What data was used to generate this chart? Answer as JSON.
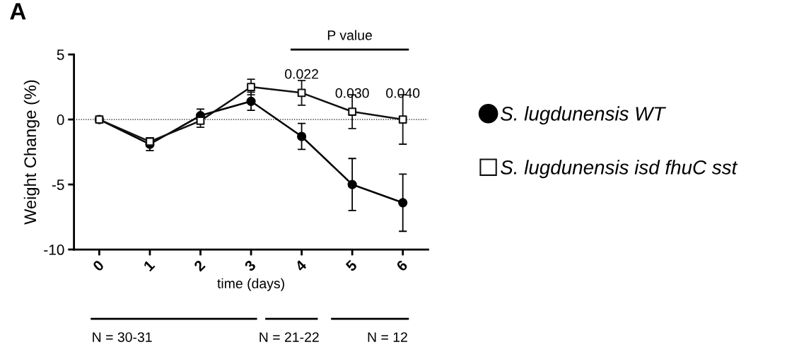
{
  "chart_data": {
    "type": "line",
    "xlabel": "time (days)",
    "ylabel": "Weight Change (%)",
    "x": [
      0,
      1,
      2,
      3,
      4,
      5,
      6
    ],
    "xlim": [
      -0.5,
      6.5
    ],
    "xticks": [
      0,
      1,
      2,
      3,
      4,
      5,
      6
    ],
    "ylim": [
      -10,
      5
    ],
    "yticks": [
      -10,
      -5,
      0,
      5
    ],
    "series": [
      {
        "name": "S. lugdunensis WT",
        "color": "#000000",
        "marker": "circle",
        "values": [
          0,
          -1.9,
          0.3,
          1.4,
          -1.3,
          -5.0,
          -6.4
        ],
        "errors": [
          null,
          0.5,
          0.5,
          0.7,
          1.0,
          2.0,
          2.2
        ]
      },
      {
        "name": "S. lugdunensis isd fhuC sst",
        "color": "#111111",
        "marker": "square",
        "values": [
          0,
          -1.7,
          -0.1,
          2.5,
          2.05,
          0.6,
          0.0
        ],
        "errors": [
          null,
          0.3,
          0.5,
          0.6,
          0.95,
          1.3,
          1.9
        ]
      }
    ],
    "ref_lines": [
      {
        "axis": "y",
        "value": 0,
        "color": "#000000",
        "line_style": "dotted"
      }
    ],
    "annotations": [
      "A",
      "P value",
      "N = 30-31",
      "N = 21-22",
      "N = 12",
      "0.022",
      "0.030",
      "0.040"
    ],
    "grid": false,
    "legend": "right",
    "line_style": "solid"
  }
}
